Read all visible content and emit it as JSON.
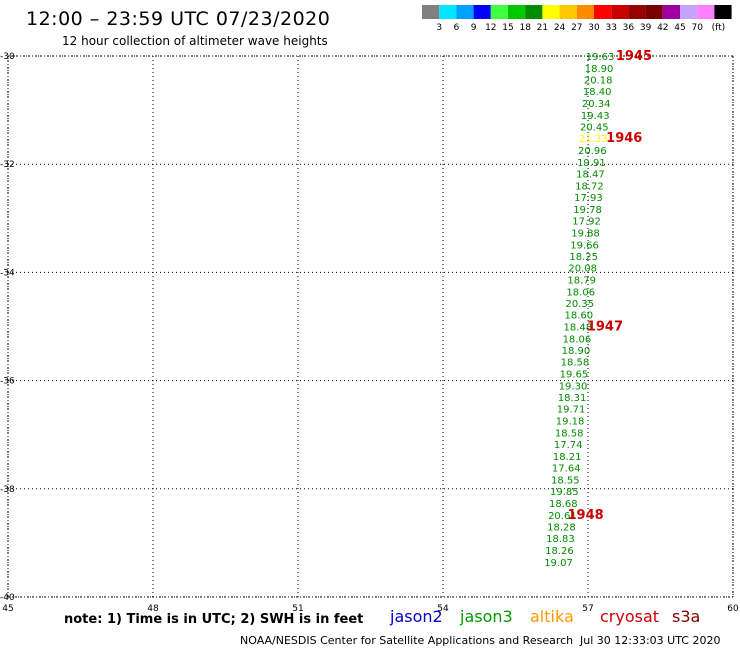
{
  "title": "12:00 – 23:59 UTC 07/23/2020",
  "subtitle": "12 hour collection of altimeter wave heights",
  "legend": {
    "colors": [
      "#808080",
      "#00e5ff",
      "#00a0ff",
      "#0000ff",
      "#40ff40",
      "#00c800",
      "#008c00",
      "#ffff00",
      "#ffc800",
      "#ff8c00",
      "#ff0000",
      "#c80000",
      "#960000",
      "#780000",
      "#a000a0",
      "#c8a0ff",
      "#ff80ff",
      "#000000"
    ],
    "labels": [
      "3",
      "6",
      "9",
      "12",
      "15",
      "18",
      "21",
      "24",
      "27",
      "30",
      "33",
      "36",
      "39",
      "42",
      "45",
      "70",
      "(ft)"
    ]
  },
  "chart_data": {
    "type": "scatter",
    "xlim": [
      45,
      60
    ],
    "ylim": [
      -40,
      -30
    ],
    "x_ticks": [
      "45",
      "48",
      "51",
      "54",
      "57",
      "60"
    ],
    "y_ticks": [
      "-30",
      "-32",
      "-34",
      "-36",
      "-38",
      "-40"
    ],
    "grid": true,
    "swh_points": [
      {
        "lon": 57.25,
        "lat": -30.0,
        "label": "19.63",
        "color": "#008c00"
      },
      {
        "lon": 57.23,
        "lat": -30.22,
        "label": "18.90",
        "color": "#008c00"
      },
      {
        "lon": 57.21,
        "lat": -30.43,
        "label": "20.18",
        "color": "#008c00"
      },
      {
        "lon": 57.19,
        "lat": -30.65,
        "label": "18.40",
        "color": "#008c00"
      },
      {
        "lon": 57.17,
        "lat": -30.87,
        "label": "20.34",
        "color": "#008c00"
      },
      {
        "lon": 57.15,
        "lat": -31.09,
        "label": "19.43",
        "color": "#008c00"
      },
      {
        "lon": 57.13,
        "lat": -31.3,
        "label": "20.45",
        "color": "#008c00"
      },
      {
        "lon": 57.11,
        "lat": -31.52,
        "label": "21.33",
        "color": "#ffff00"
      },
      {
        "lon": 57.09,
        "lat": -31.74,
        "label": "20.96",
        "color": "#008c00"
      },
      {
        "lon": 57.07,
        "lat": -31.96,
        "label": "19.91",
        "color": "#008c00"
      },
      {
        "lon": 57.05,
        "lat": -32.17,
        "label": "18.47",
        "color": "#008c00"
      },
      {
        "lon": 57.03,
        "lat": -32.39,
        "label": "18.72",
        "color": "#008c00"
      },
      {
        "lon": 57.01,
        "lat": -32.61,
        "label": "17.93",
        "color": "#008c00"
      },
      {
        "lon": 56.99,
        "lat": -32.83,
        "label": "19.78",
        "color": "#008c00"
      },
      {
        "lon": 56.97,
        "lat": -33.04,
        "label": "17.92",
        "color": "#008c00"
      },
      {
        "lon": 56.95,
        "lat": -33.26,
        "label": "19.88",
        "color": "#008c00"
      },
      {
        "lon": 56.93,
        "lat": -33.48,
        "label": "19.66",
        "color": "#008c00"
      },
      {
        "lon": 56.91,
        "lat": -33.7,
        "label": "18.25",
        "color": "#008c00"
      },
      {
        "lon": 56.89,
        "lat": -33.91,
        "label": "20.08",
        "color": "#008c00"
      },
      {
        "lon": 56.87,
        "lat": -34.13,
        "label": "18.79",
        "color": "#008c00"
      },
      {
        "lon": 56.85,
        "lat": -34.35,
        "label": "18.06",
        "color": "#008c00"
      },
      {
        "lon": 56.83,
        "lat": -34.57,
        "label": "20.35",
        "color": "#008c00"
      },
      {
        "lon": 56.81,
        "lat": -34.78,
        "label": "18.60",
        "color": "#008c00"
      },
      {
        "lon": 56.79,
        "lat": -35.0,
        "label": "18.48",
        "color": "#008c00"
      },
      {
        "lon": 56.77,
        "lat": -35.22,
        "label": "18.06",
        "color": "#008c00"
      },
      {
        "lon": 56.75,
        "lat": -35.43,
        "label": "18.90",
        "color": "#008c00"
      },
      {
        "lon": 56.73,
        "lat": -35.65,
        "label": "18.58",
        "color": "#008c00"
      },
      {
        "lon": 56.71,
        "lat": -35.87,
        "label": "19.65",
        "color": "#008c00"
      },
      {
        "lon": 56.69,
        "lat": -36.09,
        "label": "19.30",
        "color": "#008c00"
      },
      {
        "lon": 56.67,
        "lat": -36.3,
        "label": "18.31",
        "color": "#008c00"
      },
      {
        "lon": 56.65,
        "lat": -36.52,
        "label": "19.71",
        "color": "#008c00"
      },
      {
        "lon": 56.63,
        "lat": -36.74,
        "label": "19.18",
        "color": "#008c00"
      },
      {
        "lon": 56.61,
        "lat": -36.96,
        "label": "18.58",
        "color": "#008c00"
      },
      {
        "lon": 56.59,
        "lat": -37.17,
        "label": "17.74",
        "color": "#008c00"
      },
      {
        "lon": 56.57,
        "lat": -37.39,
        "label": "18.21",
        "color": "#008c00"
      },
      {
        "lon": 56.55,
        "lat": -37.61,
        "label": "17.64",
        "color": "#008c00"
      },
      {
        "lon": 56.53,
        "lat": -37.83,
        "label": "18.55",
        "color": "#008c00"
      },
      {
        "lon": 56.51,
        "lat": -38.04,
        "label": "19.85",
        "color": "#008c00"
      },
      {
        "lon": 56.49,
        "lat": -38.26,
        "label": "18.68",
        "color": "#008c00"
      },
      {
        "lon": 56.47,
        "lat": -38.48,
        "label": "20.61",
        "color": "#008c00"
      },
      {
        "lon": 56.45,
        "lat": -38.7,
        "label": "18.28",
        "color": "#008c00"
      },
      {
        "lon": 56.43,
        "lat": -38.91,
        "label": "18.83",
        "color": "#008c00"
      },
      {
        "lon": 56.41,
        "lat": -39.13,
        "label": "18.26",
        "color": "#008c00"
      },
      {
        "lon": 56.39,
        "lat": -39.35,
        "label": "19.07",
        "color": "#008c00"
      }
    ],
    "time_labels": [
      {
        "lon": 57.95,
        "lat": -30.0,
        "label": "1945"
      },
      {
        "lon": 57.75,
        "lat": -31.52,
        "label": "1946"
      },
      {
        "lon": 57.35,
        "lat": -35.0,
        "label": "1947"
      },
      {
        "lon": 56.95,
        "lat": -38.48,
        "label": "1948"
      }
    ],
    "time_color": "#cc0000"
  },
  "note": "note:  1) Time is in UTC;  2) SWH is in feet",
  "satellites": [
    {
      "name": "jason2",
      "color": "#0000cc"
    },
    {
      "name": "jason3",
      "color": "#009900"
    },
    {
      "name": "altika",
      "color": "#ff9900"
    },
    {
      "name": "cryosat",
      "color": "#cc0000"
    },
    {
      "name": "s3a",
      "color": "#800000"
    }
  ],
  "credit": "NOAA/NESDIS Center for Satellite Applications and Research",
  "timestamp": "Jul 30 12:33:03 UTC 2020"
}
